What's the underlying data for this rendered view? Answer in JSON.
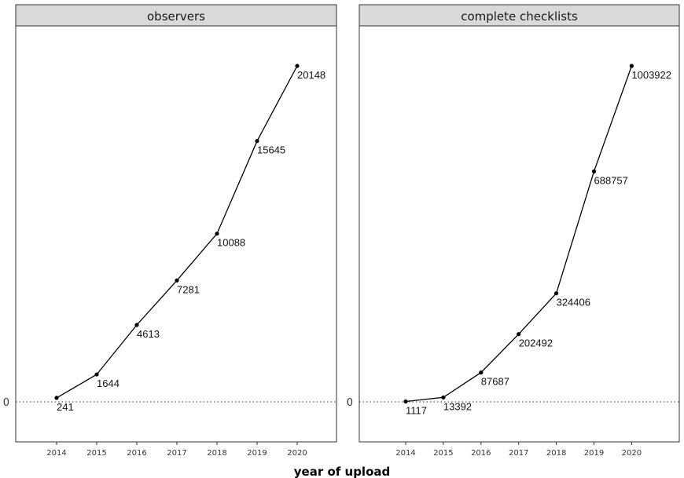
{
  "chart_data": [
    {
      "type": "line",
      "title": "observers",
      "xlabel": "year of upload",
      "ylabel": "",
      "x": [
        2014,
        2015,
        2016,
        2017,
        2018,
        2019,
        2020
      ],
      "values": [
        241,
        1644,
        4613,
        7281,
        10088,
        15645,
        20148
      ],
      "ylim": [
        0,
        20148
      ],
      "y_tick_labels": [
        "0"
      ],
      "grid": false,
      "baseline": 0
    },
    {
      "type": "line",
      "title": "complete checklists",
      "xlabel": "year of upload",
      "ylabel": "",
      "x": [
        2014,
        2015,
        2016,
        2017,
        2018,
        2019,
        2020
      ],
      "values": [
        1117,
        13392,
        87687,
        202492,
        324406,
        688757,
        1003922
      ],
      "ylim": [
        0,
        1003922
      ],
      "y_tick_labels": [
        "0"
      ],
      "grid": false,
      "baseline": 0
    }
  ],
  "figure": {
    "xlabel": "year of upload"
  }
}
